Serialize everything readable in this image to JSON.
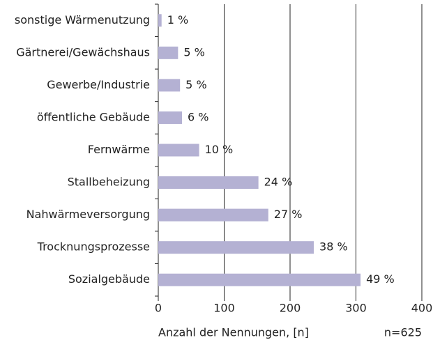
{
  "chart_data": {
    "type": "bar",
    "orientation": "horizontal",
    "categories": [
      "sonstige Wärmenutzung",
      "Gärtnerei/Gewächshaus",
      "Gewerbe/Industrie",
      "öffentliche Gebäude",
      "Fernwärme",
      "Stallbeheizung",
      "Nahwärmeversorgung",
      "Trocknungsprozesse",
      "Sozialgebäude"
    ],
    "values": [
      5,
      30,
      33,
      36,
      62,
      152,
      167,
      236,
      307
    ],
    "value_labels": [
      "1 %",
      "5 %",
      "5 %",
      "6 %",
      "10 %",
      "24 %",
      "27 %",
      "38 %",
      "49 %"
    ],
    "color": "#b4b1d3",
    "xlim": [
      0,
      400
    ],
    "xticks": [
      0,
      100,
      200,
      300,
      400
    ],
    "grid": true,
    "x_label": "Anzahl der Nennungen, [n]",
    "annotation": "n=625"
  }
}
